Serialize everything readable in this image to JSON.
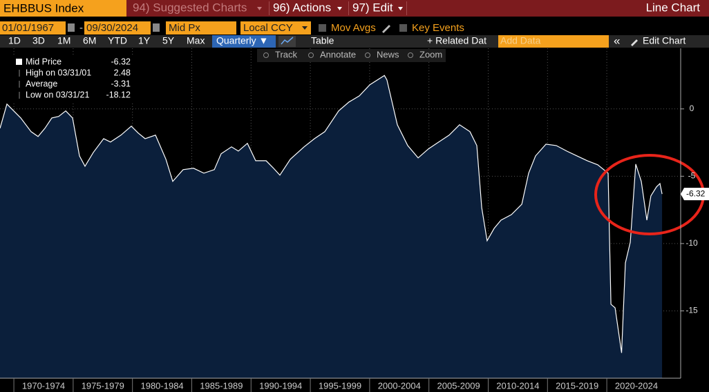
{
  "toolbar": {
    "ticker": "EHBBUS Index",
    "menus": [
      "94) Suggested Charts",
      "96) Actions",
      "97) Edit"
    ],
    "chart_type": "Line Chart"
  },
  "settings": {
    "start_date": "01/01/1967",
    "date_separator": "-",
    "end_date": "09/30/2024",
    "field": "Mid Px",
    "currency": "Local CCY",
    "options": [
      "Mov Avgs",
      "Key Events"
    ]
  },
  "range_bar": {
    "periods": [
      "1D",
      "3D",
      "1M",
      "6M",
      "YTD",
      "1Y",
      "5Y",
      "Max"
    ],
    "frequency": "Quarterly ▼",
    "table": "Table",
    "related": "+ Related Dat",
    "add_data": "Add Data",
    "collapse": "«",
    "edit_chart": "Edit Chart"
  },
  "chart_tools": [
    "Track",
    "Annotate",
    "News",
    "Zoom"
  ],
  "chart_data": {
    "type": "area",
    "series": [
      {
        "name": "Mid Price",
        "color": "#ffffff",
        "fill": "#0b1f3b",
        "x": [
          1968.83,
          1969.41,
          1970.58,
          1971.45,
          1972.04,
          1972.62,
          1973.2,
          1973.78,
          1974.37,
          1974.95,
          1975.53,
          1976.0,
          1976.7,
          1977.57,
          1978.15,
          1979.03,
          1979.9,
          1980.48,
          1981.07,
          1981.94,
          1982.82,
          1983.4,
          1984.27,
          1985.15,
          1986.02,
          1986.9,
          1987.48,
          1988.35,
          1988.93,
          1989.69,
          1990.39,
          1991.27,
          1991.85,
          1992.43,
          1993.31,
          1994.47,
          1995.35,
          1996.22,
          1997.39,
          1998.26,
          1999.13,
          2000.01,
          2001.25,
          2001.46,
          2002.34,
          2003.21,
          2004.09,
          2004.96,
          2005.83,
          2006.71,
          2007.58,
          2008.46,
          2009.04,
          2009.45,
          2009.91,
          2010.5,
          2011.08,
          2011.95,
          2012.83,
          2013.41,
          2013.99,
          2014.87,
          2015.74,
          2016.62,
          2017.49,
          2018.36,
          2019.24,
          2020.11,
          2020.35,
          2020.7,
          2021.25,
          2021.57,
          2021.98,
          2022.44,
          2022.91,
          2023.38,
          2023.72,
          2024.19,
          2024.48,
          2024.66
        ],
        "values": [
          -1.44,
          0.36,
          -0.67,
          -1.69,
          -2.05,
          -1.44,
          -0.67,
          -0.56,
          -0.15,
          -0.67,
          -3.49,
          -4.26,
          -3.23,
          -2.21,
          -2.46,
          -1.95,
          -1.28,
          -1.79,
          -2.21,
          -1.95,
          -3.74,
          -5.38,
          -4.51,
          -4.41,
          -4.77,
          -4.51,
          -3.33,
          -2.82,
          -3.13,
          -2.56,
          -3.85,
          -3.85,
          -4.36,
          -4.92,
          -3.74,
          -2.82,
          -2.21,
          -1.69,
          -0.15,
          0.51,
          0.97,
          1.79,
          2.48,
          2.15,
          -1.18,
          -2.72,
          -3.64,
          -2.97,
          -2.46,
          -1.95,
          -1.18,
          -1.69,
          -2.72,
          -7.33,
          -9.79,
          -8.87,
          -8.26,
          -7.85,
          -7.08,
          -4.77,
          -3.49,
          -2.62,
          -2.72,
          -3.13,
          -3.49,
          -3.85,
          -4.15,
          -4.77,
          -14.51,
          -14.77,
          -18.12,
          -11.44,
          -9.9,
          -4.1,
          -5.38,
          -8.26,
          -6.46,
          -5.79,
          -5.54,
          -6.32
        ]
      }
    ],
    "last_value": -6.32,
    "stats": [
      {
        "label": "High on 03/31/01",
        "value": 2.48
      },
      {
        "label": "Average",
        "value": -3.31
      },
      {
        "label": "Low on 03/31/21",
        "value": -18.12
      }
    ],
    "xlim": [
      1968.83,
      2026.23
    ],
    "xticks": [
      {
        "value": 1970,
        "label": "1970-1974"
      },
      {
        "value": 1975,
        "label": "1975-1979"
      },
      {
        "value": 1980,
        "label": "1980-1984"
      },
      {
        "value": 1985,
        "label": "1985-1989"
      },
      {
        "value": 1990,
        "label": "1990-1994"
      },
      {
        "value": 1995,
        "label": "1995-1999"
      },
      {
        "value": 2000,
        "label": "2000-2004"
      },
      {
        "value": 2005,
        "label": "2005-2009"
      },
      {
        "value": 2010,
        "label": "2010-2014"
      },
      {
        "value": 2015,
        "label": "2015-2019"
      },
      {
        "value": 2020,
        "label": "2020-2024"
      }
    ],
    "ylim": [
      -20,
      4.5
    ],
    "yticks": [
      0,
      -5,
      -10,
      -15
    ],
    "grid": true
  }
}
